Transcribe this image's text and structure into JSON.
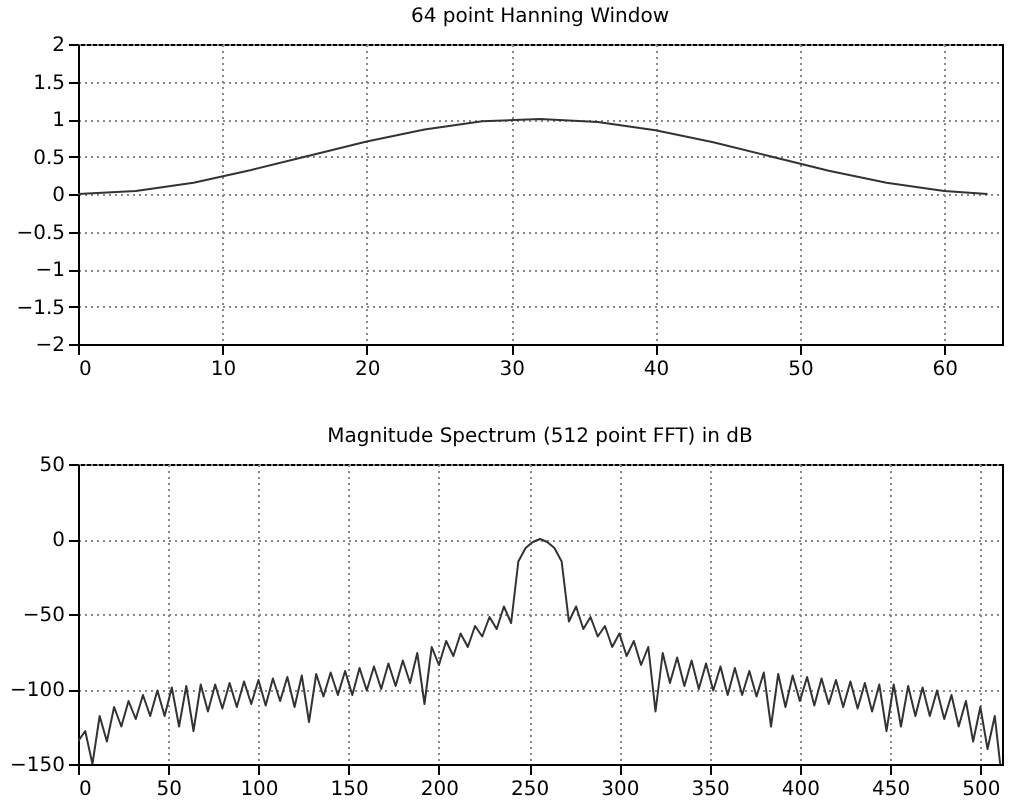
{
  "chart_data": [
    {
      "type": "line",
      "title": "64 point Hanning Window",
      "xlim": [
        0,
        64
      ],
      "ylim": [
        -2,
        2
      ],
      "xticks": [
        0,
        10,
        20,
        30,
        40,
        50,
        60
      ],
      "yticks": [
        -2,
        -1.5,
        -1,
        -0.5,
        0,
        0.5,
        1,
        1.5,
        2
      ],
      "grid": true,
      "series": [
        {
          "color": "#333333",
          "x": [
            0,
            4,
            8,
            12,
            16,
            20,
            24,
            28,
            32,
            36,
            40,
            44,
            48,
            52,
            56,
            60,
            63
          ],
          "values": [
            0,
            0.04,
            0.15,
            0.32,
            0.51,
            0.7,
            0.86,
            0.97,
            1.0,
            0.96,
            0.85,
            0.69,
            0.5,
            0.31,
            0.15,
            0.04,
            0
          ]
        }
      ]
    },
    {
      "type": "line",
      "title": "Magnitude Spectrum (512 point FFT) in dB",
      "xlim": [
        0,
        512
      ],
      "ylim": [
        -150,
        50
      ],
      "xticks": [
        0,
        50,
        100,
        150,
        200,
        250,
        300,
        350,
        400,
        450,
        500
      ],
      "yticks": [
        -150,
        -100,
        -50,
        0,
        50
      ],
      "grid": true,
      "series": [
        {
          "color": "#333333",
          "x": [
            0,
            4,
            8,
            12,
            16,
            20,
            24,
            28,
            32,
            36,
            40,
            44,
            48,
            52,
            56,
            60,
            64,
            68,
            72,
            76,
            80,
            84,
            88,
            92,
            96,
            100,
            104,
            108,
            112,
            116,
            120,
            124,
            128,
            132,
            136,
            140,
            144,
            148,
            152,
            156,
            160,
            164,
            168,
            172,
            176,
            180,
            184,
            188,
            192,
            196,
            200,
            204,
            208,
            212,
            216,
            220,
            224,
            228,
            232,
            236,
            240,
            244,
            248,
            252,
            256,
            260,
            264,
            268,
            272,
            276,
            280,
            284,
            288,
            292,
            296,
            300,
            304,
            308,
            312,
            316,
            320,
            324,
            328,
            332,
            336,
            340,
            344,
            348,
            352,
            356,
            360,
            364,
            368,
            372,
            376,
            380,
            384,
            388,
            392,
            396,
            400,
            404,
            408,
            412,
            416,
            420,
            424,
            428,
            432,
            436,
            440,
            444,
            448,
            452,
            456,
            460,
            464,
            468,
            472,
            476,
            480,
            484,
            488,
            492,
            496,
            500,
            504,
            508,
            511
          ],
          "values": [
            -135,
            -128,
            -150,
            -118,
            -135,
            -112,
            -125,
            -108,
            -120,
            -104,
            -118,
            -101,
            -118,
            -99,
            -125,
            -98,
            -128,
            -97,
            -115,
            -97,
            -113,
            -96,
            -112,
            -95,
            -110,
            -94,
            -111,
            -93,
            -108,
            -92,
            -112,
            -91,
            -122,
            -90,
            -105,
            -89,
            -104,
            -88,
            -104,
            -86,
            -101,
            -85,
            -100,
            -83,
            -98,
            -81,
            -96,
            -76,
            -110,
            -72,
            -84,
            -68,
            -78,
            -63,
            -72,
            -58,
            -65,
            -52,
            -60,
            -45,
            -56,
            -15,
            -6,
            -2,
            0,
            -2,
            -6,
            -15,
            -55,
            -45,
            -60,
            -52,
            -65,
            -58,
            -72,
            -63,
            -78,
            -68,
            -84,
            -72,
            -115,
            -76,
            -96,
            -79,
            -98,
            -81,
            -100,
            -83,
            -101,
            -85,
            -104,
            -86,
            -104,
            -88,
            -105,
            -89,
            -125,
            -90,
            -112,
            -91,
            -108,
            -92,
            -111,
            -93,
            -110,
            -94,
            -112,
            -95,
            -113,
            -96,
            -115,
            -97,
            -128,
            -97,
            -125,
            -98,
            -118,
            -99,
            -118,
            -101,
            -120,
            -104,
            -125,
            -108,
            -135,
            -112,
            -140,
            -118,
            -150
          ]
        }
      ]
    }
  ]
}
